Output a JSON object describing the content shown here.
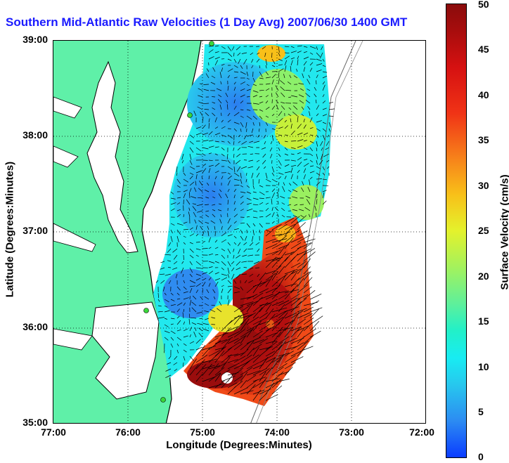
{
  "figure": {
    "title": "Southern Mid-Atlantic Raw Velocities (1 Day Avg) 2007/06/30 1400 GMT",
    "xlabel": "Longitude (Degrees:Minutes)",
    "ylabel": "Latitude (Degrees:Minutes)",
    "xticks": [
      "77:00",
      "76:00",
      "75:00",
      "74:00",
      "73:00",
      "72:00"
    ],
    "yticks": [
      "39:00",
      "38:00",
      "37:00",
      "36:00",
      "35:00"
    ],
    "colorbar": {
      "label": "Surface Velocity (cm/s)",
      "ticks": [
        "50",
        "45",
        "40",
        "35",
        "30",
        "25",
        "20",
        "15",
        "10",
        "5",
        "0"
      ],
      "range": [
        0,
        50
      ],
      "colormap": "jet"
    },
    "colors": {
      "land": "#5ff0a8",
      "title": "#1a1aff",
      "low_speed": "#2c8bf2",
      "high_speed": "#a80d0d"
    }
  }
}
